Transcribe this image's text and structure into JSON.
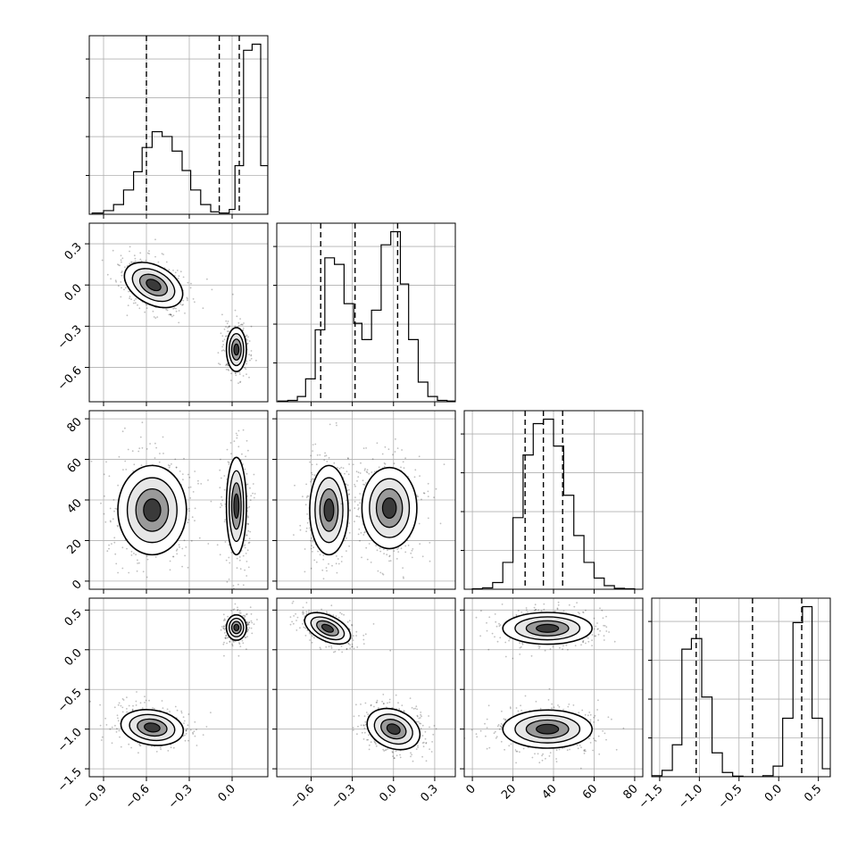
{
  "chart_data": {
    "type": "corner",
    "parameters": 4,
    "grid": true,
    "colors": {
      "line": "#000000",
      "grid": "#b0b0b0",
      "quantile": "#000000",
      "density_max": "#000000"
    },
    "axes": [
      {
        "range": [
          -1.0,
          0.25
        ],
        "ticks": [
          -0.9,
          -0.6,
          -0.3,
          0.0
        ],
        "tick_labels": [
          "−0.9",
          "−0.6",
          "−0.3",
          "0.0"
        ]
      },
      {
        "range": [
          -0.85,
          0.45
        ],
        "ticks": [
          -0.6,
          -0.3,
          0.0,
          0.3
        ],
        "tick_labels": [
          "−0.6",
          "−0.3",
          "0.0",
          "0.3"
        ]
      },
      {
        "range": [
          -4,
          84
        ],
        "ticks": [
          0,
          20,
          40,
          60,
          80
        ],
        "tick_labels": [
          "0",
          "20",
          "40",
          "60",
          "80"
        ]
      },
      {
        "range": [
          -1.6,
          0.65
        ],
        "ticks": [
          -1.5,
          -1.0,
          -0.5,
          0.0,
          0.5
        ],
        "tick_labels": [
          "−1.5",
          "−1.0",
          "−0.5",
          "0.0",
          "0.5"
        ]
      }
    ],
    "histograms": [
      {
        "param": 0,
        "edges": [
          -0.98,
          -0.9,
          -0.83,
          -0.76,
          -0.69,
          -0.63,
          -0.56,
          -0.49,
          -0.42,
          -0.35,
          -0.29,
          -0.22,
          -0.15,
          -0.09,
          -0.02,
          0.02,
          0.08,
          0.14,
          0.2,
          0.25
        ],
        "counts": [
          1,
          3,
          8,
          20,
          35,
          55,
          68,
          64,
          52,
          36,
          20,
          8,
          2,
          1,
          4,
          40,
          135,
          140,
          40
        ],
        "quantiles": [
          -0.6,
          -0.09,
          0.05
        ]
      },
      {
        "param": 1,
        "edges": [
          -0.84,
          -0.77,
          -0.7,
          -0.64,
          -0.57,
          -0.5,
          -0.43,
          -0.36,
          -0.29,
          -0.23,
          -0.16,
          -0.09,
          -0.02,
          0.05,
          0.11,
          0.18,
          0.25,
          0.32,
          0.39,
          0.45
        ],
        "counts": [
          1,
          2,
          8,
          35,
          110,
          220,
          210,
          150,
          120,
          95,
          140,
          240,
          260,
          180,
          95,
          30,
          8,
          2,
          1
        ],
        "quantiles": [
          -0.53,
          -0.28,
          0.03
        ]
      },
      {
        "param": 2,
        "edges": [
          0,
          5,
          10,
          15,
          20,
          25,
          30,
          35,
          40,
          45,
          50,
          55,
          60,
          65,
          70,
          75,
          80
        ],
        "counts": [
          1,
          3,
          15,
          60,
          160,
          300,
          370,
          380,
          320,
          210,
          120,
          60,
          25,
          8,
          2,
          1
        ],
        "quantiles": [
          26,
          35,
          44.5
        ]
      },
      {
        "param": 3,
        "edges": [
          -1.6,
          -1.47,
          -1.34,
          -1.22,
          -1.1,
          -0.97,
          -0.84,
          -0.71,
          -0.58,
          -0.45,
          -0.33,
          -0.2,
          -0.07,
          0.05,
          0.18,
          0.3,
          0.42,
          0.55,
          0.65
        ],
        "counts": [
          2,
          12,
          60,
          240,
          260,
          150,
          45,
          8,
          1,
          0,
          0,
          2,
          20,
          110,
          290,
          320,
          110,
          15
        ],
        "quantiles": [
          -1.04,
          -0.33,
          0.29
        ]
      }
    ],
    "blobs": [
      {
        "x": 0,
        "y": 1,
        "clusters": [
          {
            "cx": -0.55,
            "cy": 0.0,
            "sx": 0.11,
            "sy": 0.07,
            "rot": -0.5,
            "n": 420
          },
          {
            "cx": 0.03,
            "cy": -0.47,
            "sx": 0.035,
            "sy": 0.08,
            "rot": 0,
            "n": 360
          }
        ]
      },
      {
        "x": 0,
        "y": 2,
        "clusters": [
          {
            "cx": -0.56,
            "cy": 35,
            "sx": 0.12,
            "sy": 11,
            "rot": 0,
            "n": 420
          },
          {
            "cx": 0.03,
            "cy": 37,
            "sx": 0.035,
            "sy": 12,
            "rot": 0,
            "n": 380
          }
        ]
      },
      {
        "x": 0,
        "y": 3,
        "clusters": [
          {
            "cx": -0.56,
            "cy": -0.98,
            "sx": 0.11,
            "sy": 0.11,
            "rot": -0.15,
            "n": 420
          },
          {
            "cx": 0.03,
            "cy": 0.28,
            "sx": 0.035,
            "sy": 0.08,
            "rot": 0,
            "n": 360
          }
        ]
      },
      {
        "x": 1,
        "y": 2,
        "clusters": [
          {
            "cx": -0.47,
            "cy": 35,
            "sx": 0.07,
            "sy": 11,
            "rot": 0,
            "n": 420
          },
          {
            "cx": -0.03,
            "cy": 36,
            "sx": 0.1,
            "sy": 10,
            "rot": 0,
            "n": 420
          }
        ]
      },
      {
        "x": 1,
        "y": 3,
        "clusters": [
          {
            "cx": -0.48,
            "cy": 0.27,
            "sx": 0.09,
            "sy": 0.08,
            "rot": -0.45,
            "n": 360
          },
          {
            "cx": 0.0,
            "cy": -1.0,
            "sx": 0.1,
            "sy": 0.12,
            "rot": -0.4,
            "n": 420
          }
        ]
      },
      {
        "x": 2,
        "y": 3,
        "clusters": [
          {
            "cx": 37,
            "cy": 0.27,
            "sx": 11,
            "sy": 0.1,
            "rot": 0,
            "n": 420
          },
          {
            "cx": 37,
            "cy": -1.0,
            "sx": 11,
            "sy": 0.12,
            "rot": 0,
            "n": 420
          }
        ]
      }
    ]
  }
}
